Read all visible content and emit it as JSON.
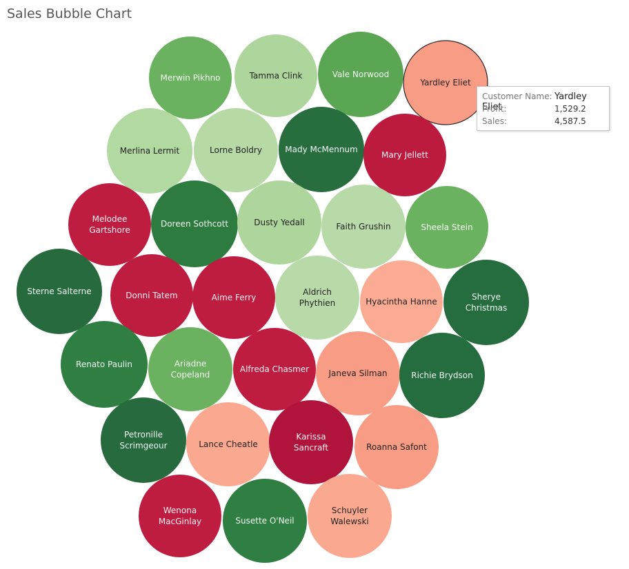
{
  "chart_data": {
    "type": "bubble",
    "title": "Sales Bubble Chart",
    "legend": "none",
    "color_scale": [
      "#b8163c",
      "#f99a80",
      "#b6dba6",
      "#6db563",
      "#236b3b"
    ],
    "bubbles": [
      {
        "name": "Merwin Pikhno",
        "color": "#6ab25f"
      },
      {
        "name": "Tamma Clink",
        "color": "#aed69c"
      },
      {
        "name": "Vale Norwood",
        "color": "#5aa653"
      },
      {
        "name": "Yardley Eliet",
        "color": "#f99c85",
        "highlighted": true
      },
      {
        "name": "Merlina Lermit",
        "color": "#b3d9a3"
      },
      {
        "name": "Lorne Boldry",
        "color": "#b6d9a6"
      },
      {
        "name": "Mady McMennum",
        "color": "#276d3e"
      },
      {
        "name": "Mary Jellett",
        "color": "#bd1a40"
      },
      {
        "name": "Melodee Gartshore",
        "color": "#be1c41"
      },
      {
        "name": "Doreen Sothcott",
        "color": "#2e7b40"
      },
      {
        "name": "Dusty Yedall",
        "color": "#aed69c"
      },
      {
        "name": "Faith Grushin",
        "color": "#b8daa8"
      },
      {
        "name": "Sheela Stein",
        "color": "#6ab25f"
      },
      {
        "name": "Sterne Salterne",
        "color": "#266a3d"
      },
      {
        "name": "Donni Tatem",
        "color": "#be1c41"
      },
      {
        "name": "Aime Ferry",
        "color": "#be1c41"
      },
      {
        "name": "Aldrich Phythien",
        "color": "#b8daa8"
      },
      {
        "name": "Hyacintha Hanne",
        "color": "#fbab94"
      },
      {
        "name": "Sherye Christmas",
        "color": "#256c3e"
      },
      {
        "name": "Renato Paulin",
        "color": "#2f7e42"
      },
      {
        "name": "Ariadne Copeland",
        "color": "#6ab25f"
      },
      {
        "name": "Alfreda Chasmer",
        "color": "#be1c41"
      },
      {
        "name": "Janeva Silman",
        "color": "#f99c85"
      },
      {
        "name": "Richie Brydson",
        "color": "#256c3e"
      },
      {
        "name": "Petronille Scrimgeour",
        "color": "#266a3d"
      },
      {
        "name": "Lance Cheatle",
        "color": "#fba891"
      },
      {
        "name": "Karissa Sancraft",
        "color": "#b0143c"
      },
      {
        "name": "Roanna Safont",
        "color": "#f99c85"
      },
      {
        "name": "Wenona MacGinlay",
        "color": "#be1c41"
      },
      {
        "name": "Susette O'Neil",
        "color": "#2f7e42"
      },
      {
        "name": "Schuyler Walewski",
        "color": "#fba891"
      }
    ]
  },
  "tooltip": {
    "customer_label": "Customer Name:",
    "customer_value": "Yardley Eliet",
    "profit_label": "Profit:",
    "profit_value": "1,529.2",
    "sales_label": "Sales:",
    "sales_value": "4,587.5"
  }
}
